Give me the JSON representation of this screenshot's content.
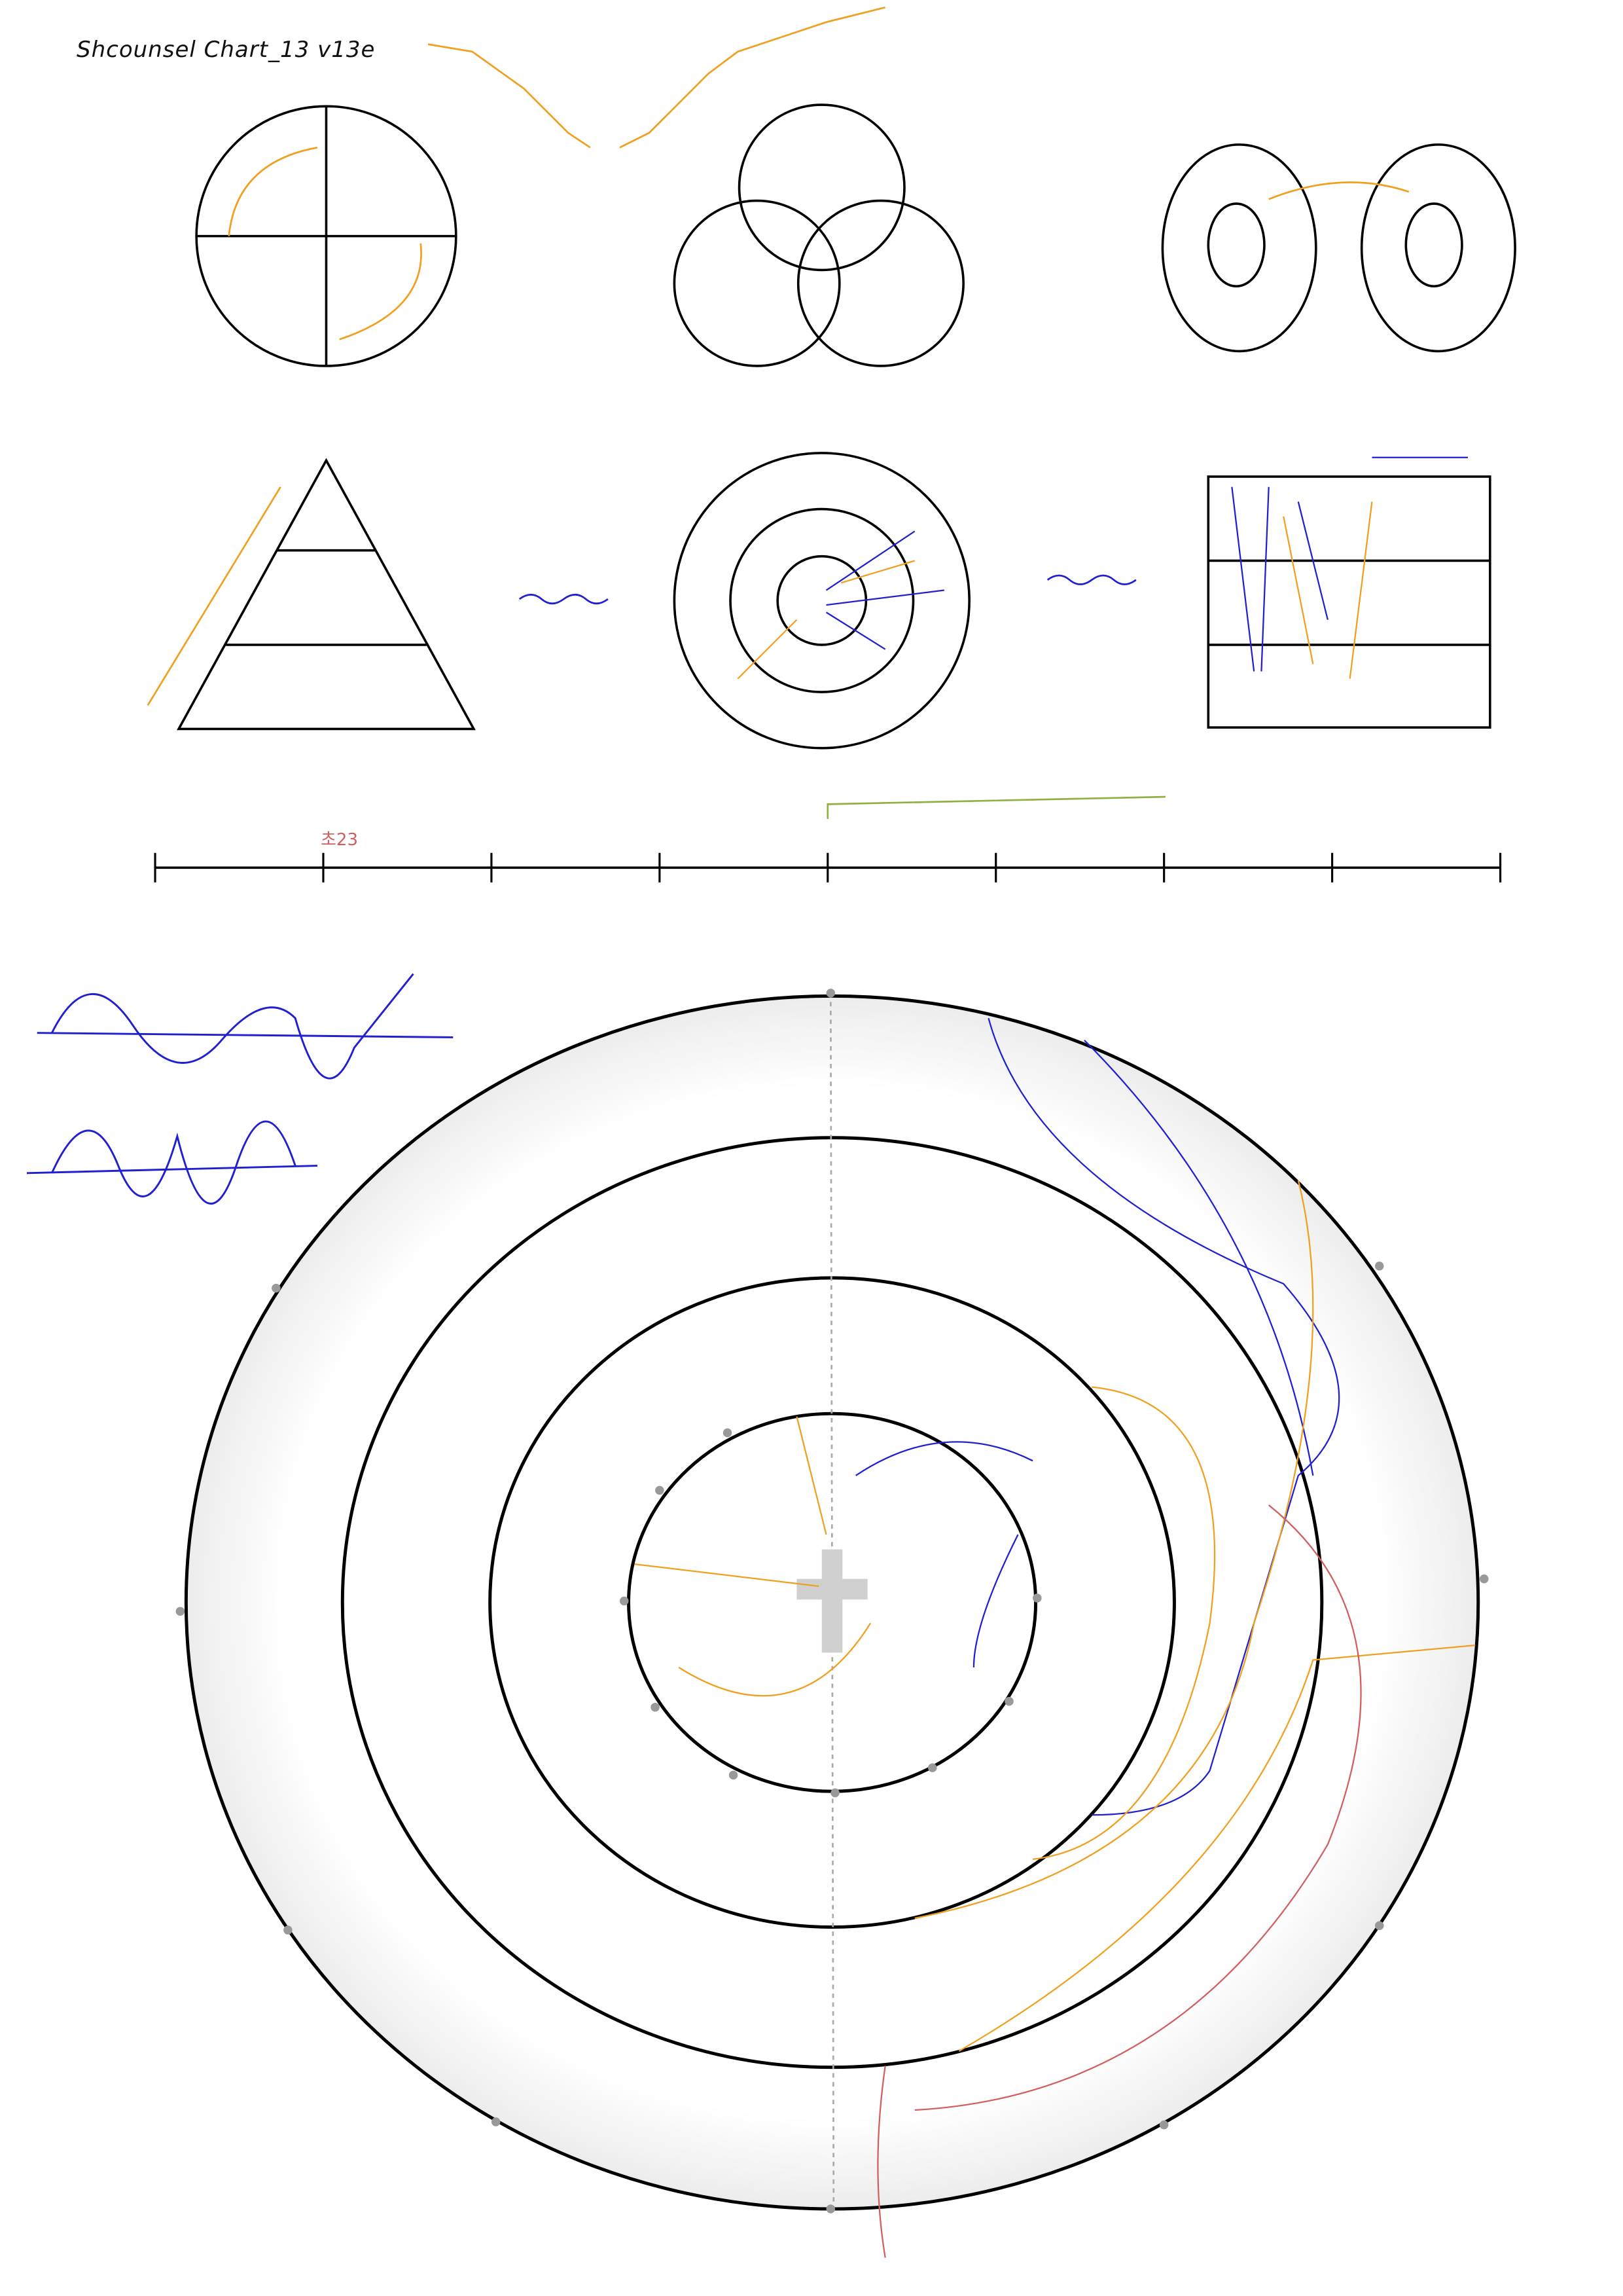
{
  "title": "Shcounsel Chart_13 v13e",
  "timeline_label": "초23",
  "colors": {
    "ink": "#000000",
    "orange": "#f0a020",
    "blue": "#2020d0",
    "green": "#90b040",
    "red": "#d06060",
    "gray": "#c8c8c8"
  }
}
